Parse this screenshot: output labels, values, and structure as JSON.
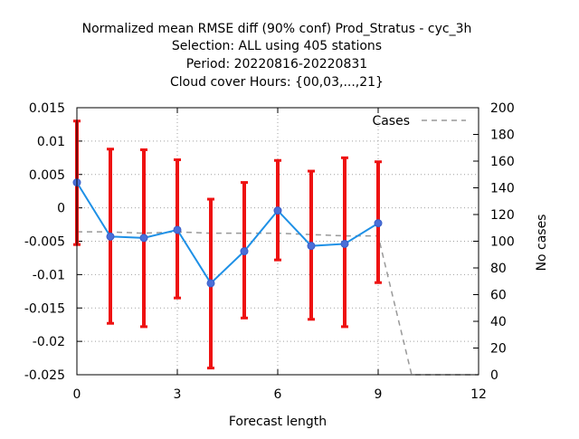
{
  "chart_data": {
    "type": "line",
    "title_lines": [
      "Normalized mean RMSE diff (90% conf) Prod_Stratus - cyc_3h",
      "Selection: ALL using   405 stations",
      "Period: 20220816-20220831",
      "Cloud cover   Hours: {00,03,...,21}"
    ],
    "xlabel": "Forecast length",
    "ylabel_right": "No cases",
    "xlim": [
      0,
      12
    ],
    "ylim": [
      -0.025,
      0.015
    ],
    "y2lim": [
      0,
      200
    ],
    "x_ticks": [
      "0",
      "3",
      "6",
      "9",
      "12"
    ],
    "x_tick_values": [
      0,
      3,
      6,
      9,
      12
    ],
    "y_ticks": [
      "0.015",
      "0.01",
      "0.005",
      "0",
      "-0.005",
      "-0.01",
      "-0.015",
      "-0.02",
      "-0.025"
    ],
    "y_tick_values": [
      0.015,
      0.01,
      0.005,
      0,
      -0.005,
      -0.01,
      -0.015,
      -0.02,
      -0.025
    ],
    "y2_ticks": [
      "200",
      "180",
      "160",
      "140",
      "120",
      "100",
      "80",
      "60",
      "40",
      "20",
      "0"
    ],
    "y2_tick_values": [
      200,
      180,
      160,
      140,
      120,
      100,
      80,
      60,
      40,
      20,
      0
    ],
    "grid": true,
    "legend": {
      "position": "top-right",
      "entries": [
        "Cases"
      ]
    },
    "series": [
      {
        "kind": "mean_diff",
        "axis": "left",
        "x": [
          0,
          1,
          2,
          3,
          4,
          5,
          6,
          7,
          8,
          9
        ],
        "values": [
          0.0038,
          -0.0043,
          -0.0045,
          -0.0033,
          -0.0113,
          -0.0065,
          -0.0004,
          -0.0057,
          -0.0054,
          -0.0023
        ],
        "err_low": [
          -0.0055,
          -0.0173,
          -0.0178,
          -0.0135,
          -0.024,
          -0.0165,
          -0.0078,
          -0.0167,
          -0.0178,
          -0.0112
        ],
        "err_high": [
          0.013,
          0.0088,
          0.0087,
          0.0072,
          0.0013,
          0.0038,
          0.0071,
          0.0055,
          0.0075,
          0.0069
        ],
        "line_color": "#1e90e6",
        "marker_color": "#4a6fd8",
        "error_color": "#ee1111"
      },
      {
        "name": "Cases",
        "axis": "right",
        "x": [
          0,
          1,
          2,
          3,
          4,
          5,
          6,
          7,
          8,
          9,
          10,
          11,
          12
        ],
        "values": [
          107,
          107,
          106,
          107,
          106,
          106,
          106,
          105,
          104,
          104,
          0,
          0,
          0
        ],
        "line_color": "#999999",
        "dash": "6,5"
      }
    ]
  }
}
